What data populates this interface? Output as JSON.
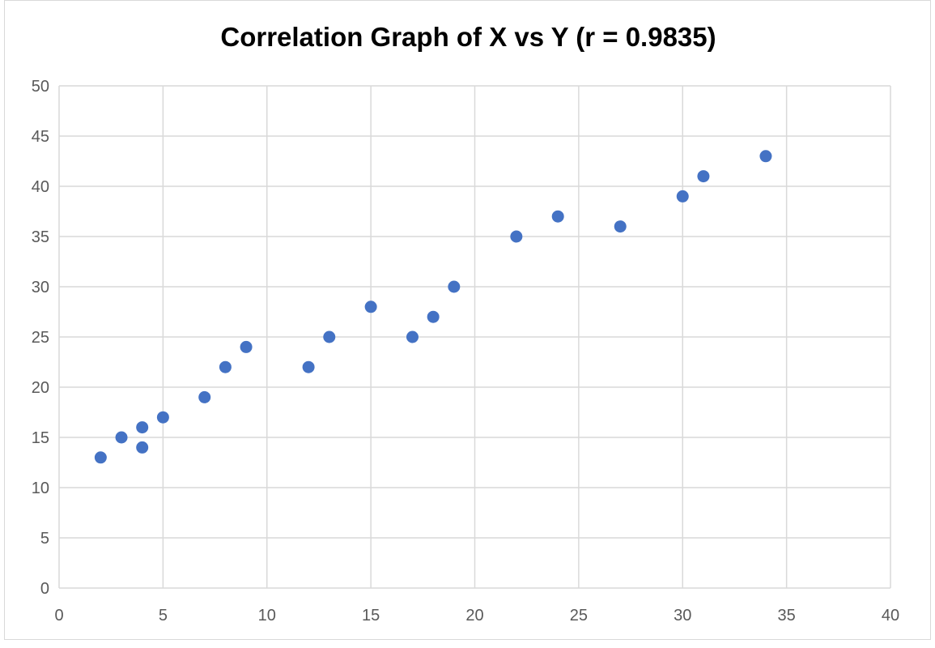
{
  "chart_data": {
    "type": "scatter",
    "title": "Correlation Graph of X vs Y (r = 0.9835)",
    "xlabel": "",
    "ylabel": "",
    "xlim": [
      0,
      40
    ],
    "ylim": [
      0,
      50
    ],
    "x_ticks": [
      "0",
      "5",
      "10",
      "15",
      "20",
      "25",
      "30",
      "35",
      "40"
    ],
    "y_ticks": [
      "0",
      "5",
      "10",
      "15",
      "20",
      "25",
      "30",
      "35",
      "40",
      "45",
      "50"
    ],
    "grid": true,
    "legend": "none",
    "marker_color": "#4472c4",
    "points": [
      {
        "x": 2,
        "y": 13
      },
      {
        "x": 3,
        "y": 15
      },
      {
        "x": 4,
        "y": 16
      },
      {
        "x": 4,
        "y": 14
      },
      {
        "x": 5,
        "y": 17
      },
      {
        "x": 7,
        "y": 19
      },
      {
        "x": 8,
        "y": 22
      },
      {
        "x": 9,
        "y": 24
      },
      {
        "x": 12,
        "y": 22
      },
      {
        "x": 13,
        "y": 25
      },
      {
        "x": 15,
        "y": 28
      },
      {
        "x": 17,
        "y": 25
      },
      {
        "x": 18,
        "y": 27
      },
      {
        "x": 19,
        "y": 30
      },
      {
        "x": 22,
        "y": 35
      },
      {
        "x": 24,
        "y": 37
      },
      {
        "x": 27,
        "y": 36
      },
      {
        "x": 30,
        "y": 39
      },
      {
        "x": 31,
        "y": 41
      },
      {
        "x": 34,
        "y": 43
      }
    ]
  }
}
